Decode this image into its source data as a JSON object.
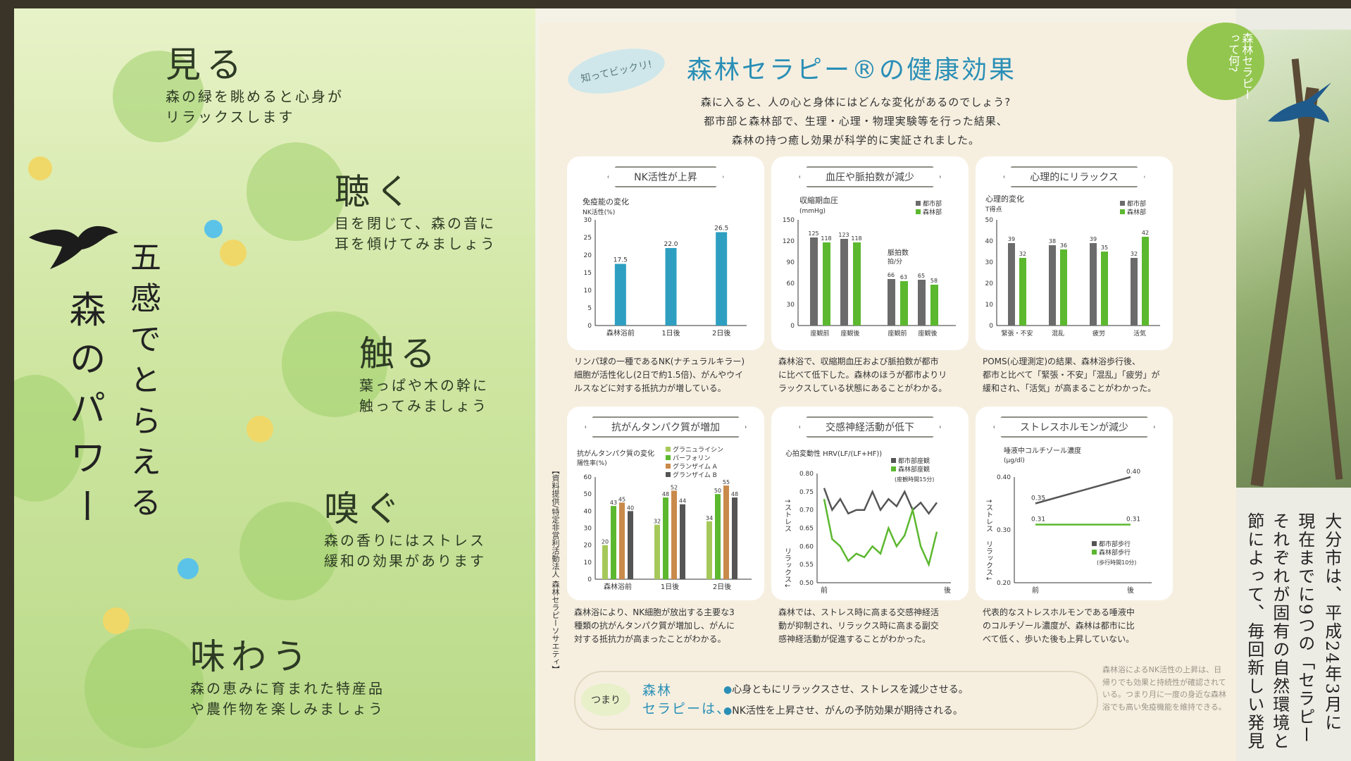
{
  "left": {
    "vertical_title_1": "森のパワー",
    "vertical_title_2": "五感でとらえる",
    "senses": [
      {
        "heading": "見る",
        "desc_1": "森の緑を眺めると心身が",
        "desc_2": "リラックスします"
      },
      {
        "heading": "聴く",
        "desc_1": "目を閉じて、森の音に",
        "desc_2": "耳を傾けてみましょう"
      },
      {
        "heading": "触る",
        "desc_1": "葉っぱや木の幹に",
        "desc_2": "触ってみましょう"
      },
      {
        "heading": "嗅ぐ",
        "desc_1": "森の香りにはストレス",
        "desc_2": "緩和の効果があります"
      },
      {
        "heading": "味わう",
        "desc_1": "森の恵みに育まれた特産品",
        "desc_2": "や農作物を楽しみましょう"
      }
    ]
  },
  "header": {
    "bubble": "知ってビックリ!",
    "title": "森林セラピー®の健康効果",
    "intro_1": "森に入ると、人の心と身体にはどんな変化があるのでしょう?",
    "intro_2": "都市部と森林部で、生理・心理・物理実験等を行った結果、",
    "intro_3": "森林の持つ癒し効果が科学的に実証されました。"
  },
  "colors": {
    "blue": "#2e9fc0",
    "gray": "#6b6b6b",
    "green": "#5cb82f",
    "light_green": "#a6c85a",
    "orange": "#c98a4a",
    "dark": "#555555",
    "red": "#d9486a"
  },
  "cards": [
    {
      "head": "NK活性が上昇",
      "caption_1": "リンパ球の一種であるNK(ナチュラルキラー)",
      "caption_2": "細胞が活性化し(2日で約1.5倍)、がんやウイ",
      "caption_3": "ルスなどに対する抵抗力が増している。"
    },
    {
      "head": "血圧や脈拍数が減少",
      "caption_1": "森林浴で、収縮期血圧および脈拍数が都市",
      "caption_2": "に比べて低下した。森林のほうが都市よりリ",
      "caption_3": "ラックスしている状態にあることがわかる。"
    },
    {
      "head": "心理的にリラックス",
      "caption_1": "POMS(心理測定)の結果、森林浴歩行後、",
      "caption_2": "都市と比べて「緊張・不安」「混乱」「疲労」が",
      "caption_3": "緩和され、「活気」が高まることがわかった。"
    },
    {
      "head": "抗がんタンパク質が増加",
      "caption_1": "森林浴により、NK細胞が放出する主要な3",
      "caption_2": "種類の抗がんタンパク質が増加し、がんに",
      "caption_3": "対する抵抗力が高まったことがわかる。"
    },
    {
      "head": "交感神経活動が低下",
      "caption_1": "森林では、ストレス時に高まる交感神経活",
      "caption_2": "動が抑制され、リラックス時に高まる副交",
      "caption_3": "感神経活動が促進することがわかった。"
    },
    {
      "head": "ストレスホルモンが減少",
      "caption_1": "代表的なストレスホルモンである唾液中",
      "caption_2": "のコルチゾール濃度が、森林は都市に比",
      "caption_3": "べて低く、歩いた後も上昇していない。"
    }
  ],
  "chart_data": [
    {
      "type": "bar",
      "title": "免疫能の変化",
      "ylabel": "NK活性(%)",
      "ylim": [
        0,
        30
      ],
      "yticks": [
        "0",
        "5",
        "10",
        "15",
        "20",
        "25",
        "30"
      ],
      "categories": [
        "森林浴前",
        "1日後",
        "2日後"
      ],
      "series": [
        {
          "values": [
            17.5,
            22.0,
            26.5
          ]
        }
      ],
      "value_labels": [
        "17.5",
        "22.0",
        "26.5"
      ]
    },
    {
      "type": "bar",
      "title": "収縮期血圧",
      "ylabel": "(mmHg)",
      "ylim": [
        0,
        150
      ],
      "yticks": [
        "0",
        "30",
        "60",
        "90",
        "120",
        "150"
      ],
      "categories": [
        "座観前",
        "座観後",
        "座観前",
        "座観後"
      ],
      "sub_title": "脈拍数",
      "sub_unit": "拍/分",
      "series": [
        {
          "name": "都市部",
          "values": [
            125,
            123,
            66,
            65
          ]
        },
        {
          "name": "森林部",
          "values": [
            118,
            118,
            63,
            58
          ]
        }
      ],
      "value_labels_city": [
        "125",
        "123",
        "66",
        "65"
      ],
      "value_labels_forest": [
        "118",
        "118",
        "63",
        "58"
      ]
    },
    {
      "type": "bar",
      "title": "心理的変化",
      "ylabel": "T得点",
      "ylim": [
        0,
        50
      ],
      "yticks": [
        "0",
        "10",
        "20",
        "30",
        "40",
        "50"
      ],
      "categories": [
        "緊張・不安",
        "混乱",
        "疲労",
        "活気"
      ],
      "series": [
        {
          "name": "都市部",
          "values": [
            39,
            38,
            39,
            32
          ]
        },
        {
          "name": "森林部",
          "values": [
            32,
            36,
            35,
            42
          ]
        }
      ],
      "value_labels_city": [
        "39",
        "38",
        "39",
        "32"
      ],
      "value_labels_forest": [
        "32",
        "36",
        "35",
        "42"
      ]
    },
    {
      "type": "bar",
      "title": "抗がんタンパク質の変化",
      "ylabel": "陽性率(%)",
      "ylim": [
        0,
        60
      ],
      "yticks": [
        "0",
        "10",
        "20",
        "30",
        "40",
        "50",
        "60"
      ],
      "categories": [
        "森林浴前",
        "1日後",
        "2日後"
      ],
      "series": [
        {
          "name": "グラニュライシン",
          "values": [
            20,
            32,
            34
          ]
        },
        {
          "name": "パーフォリン",
          "values": [
            43,
            48,
            50
          ]
        },
        {
          "name": "グランザイム A",
          "values": [
            45,
            52,
            55
          ]
        },
        {
          "name": "グランザイム B",
          "values": [
            40,
            44,
            48
          ]
        }
      ],
      "value_labels": [
        [
          "20",
          "32",
          "34"
        ],
        [
          "43",
          "48",
          "50"
        ],
        [
          "45",
          "52",
          "55"
        ],
        [
          "40",
          "44",
          "48"
        ]
      ]
    },
    {
      "type": "line",
      "title": "心拍変動性 HRV(LF/(LF+HF))",
      "ylim": [
        0.5,
        0.8
      ],
      "yticks": [
        "0.50",
        "0.55",
        "0.60",
        "0.65",
        "0.70",
        "0.75",
        "0.80"
      ],
      "y_up": "↑ストレス",
      "y_down": "リラックス↓",
      "x_start": "前",
      "x_end": "後",
      "note": "(座観時間15分)",
      "series": [
        {
          "name": "都市部座観",
          "values": [
            0.76,
            0.7,
            0.73,
            0.69,
            0.7,
            0.7,
            0.75,
            0.7,
            0.73,
            0.71,
            0.75,
            0.7,
            0.72,
            0.69,
            0.72
          ]
        },
        {
          "name": "森林部座観",
          "values": [
            0.73,
            0.62,
            0.6,
            0.56,
            0.58,
            0.57,
            0.6,
            0.58,
            0.65,
            0.6,
            0.63,
            0.7,
            0.6,
            0.55,
            0.64
          ]
        }
      ]
    },
    {
      "type": "line",
      "title": "唾液中コルチゾール濃度",
      "ylabel": "(μg/dl)",
      "ylim": [
        0.2,
        0.4
      ],
      "yticks": [
        "0.20",
        "0.30",
        "0.40"
      ],
      "y_up": "↑ストレス",
      "y_down": "リラックス↓",
      "x": [
        "前",
        "後"
      ],
      "note": "(歩行時間10分)",
      "series": [
        {
          "name": "都市部歩行",
          "values": [
            0.35,
            0.4
          ]
        },
        {
          "name": "森林部歩行",
          "values": [
            0.31,
            0.31
          ]
        }
      ],
      "value_labels": [
        [
          "0.35",
          "0.40"
        ],
        [
          "0.31",
          "0.31"
        ]
      ]
    }
  ],
  "summary": {
    "label": "つまり",
    "head_1": "森林",
    "head_2": "セラピーは、",
    "point_1": "心身ともにリラックスさせ、ストレスを減少させる。",
    "point_2": "NK活性を上昇させ、がんの予防効果が期待される。"
  },
  "side_note": "森林浴によるNK活性の上昇は、日帰りでも効果と持続性が確認されている。つまり月に一度の身近な森林浴でも高い免疫機能を維持できる。",
  "credit": "【資料提供/特定非営利活動法人 森林セラピーソサエティ】",
  "far_right": {
    "question": "森林セラピーって何?",
    "body_col_1": "大分市は、平成24年3月に",
    "body_col_2": "現在までに9つの「セラピー",
    "body_col_3": "それぞれが固有の自然環境と",
    "body_col_4": "節によって、毎回新しい発見"
  }
}
